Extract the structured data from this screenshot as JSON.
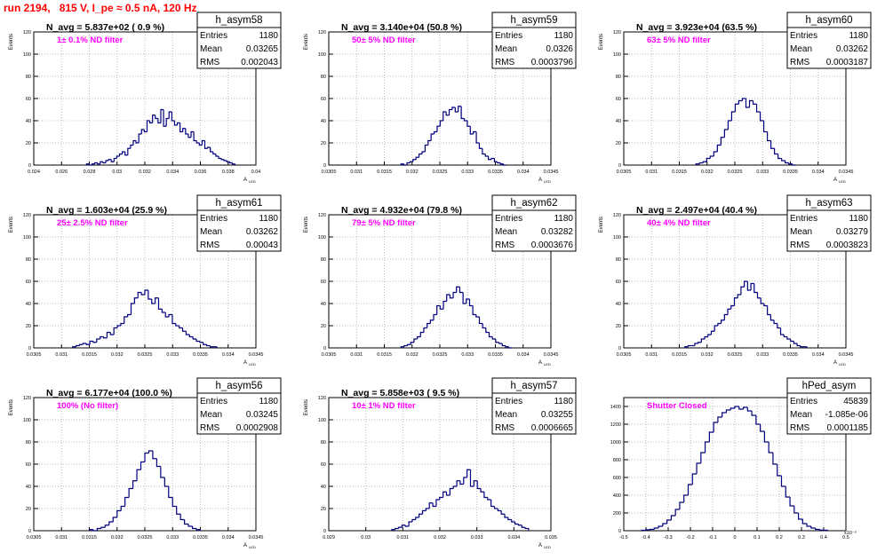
{
  "run_title": "run 2194,   815 V, I_pe ≈ 0.5 nA, 120 Hz",
  "colors": {
    "title": "#ff0000",
    "histogram": "#000080",
    "filter_text": "#ff00ff"
  },
  "chart_data": [
    {
      "type": "bar",
      "name": "h_asym58",
      "ylabel": "Events",
      "xlabel": "A_LED",
      "xlim": [
        0.024,
        0.04
      ],
      "ylim": [
        0,
        120
      ],
      "xticks": [
        "0.024",
        "0.026",
        "0.028",
        "0.03",
        "0.032",
        "0.034",
        "0.036",
        "0.038",
        "0.04"
      ],
      "yticks": [
        "0",
        "20",
        "40",
        "60",
        "80",
        "100",
        "120"
      ],
      "stats": {
        "entries_label": "Entries",
        "mean_label": "Mean",
        "rms_label": "RMS",
        "entries": "1180",
        "mean": "0.03265",
        "rms": "0.002043"
      },
      "n_avg": "N_avg = 5.837e+02 ( 0.9 %)",
      "filter": "1± 0.1% ND filter",
      "bins_x0": 0.0278,
      "bins_x1": 0.0385,
      "values": [
        1,
        0,
        1,
        2,
        1,
        3,
        2,
        4,
        5,
        3,
        6,
        8,
        10,
        12,
        9,
        15,
        18,
        22,
        20,
        28,
        32,
        30,
        40,
        38,
        45,
        42,
        38,
        50,
        35,
        42,
        48,
        40,
        36,
        38,
        30,
        33,
        28,
        25,
        30,
        22,
        20,
        18,
        22,
        15,
        16,
        12,
        10,
        8,
        6,
        5,
        4,
        3,
        2,
        1
      ]
    },
    {
      "type": "bar",
      "name": "h_asym59",
      "ylabel": "Events",
      "xlabel": "A_LED",
      "xlim": [
        0.0305,
        0.0345
      ],
      "ylim": [
        0,
        120
      ],
      "xticks": [
        "0.0305",
        "0.031",
        "0.0315",
        "0.032",
        "0.0325",
        "0.033",
        "0.0335",
        "0.034",
        "0.0345"
      ],
      "yticks": [
        "0",
        "20",
        "40",
        "60",
        "80",
        "100",
        "120"
      ],
      "stats": {
        "entries_label": "Entries",
        "mean_label": "Mean",
        "rms_label": "RMS",
        "entries": "1180",
        "mean": "0.0326",
        "rms": "0.0003796"
      },
      "n_avg": "N_avg = 3.140e+04 (50.8 %)",
      "filter": "50± 5% ND filter",
      "bins_x0": 0.0318,
      "bins_x1": 0.0337,
      "values": [
        1,
        0,
        2,
        3,
        5,
        7,
        10,
        12,
        18,
        22,
        28,
        30,
        35,
        40,
        48,
        45,
        50,
        52,
        48,
        53,
        42,
        40,
        35,
        28,
        30,
        20,
        15,
        10,
        8,
        5,
        6,
        3,
        2,
        1,
        0
      ]
    },
    {
      "type": "bar",
      "name": "h_asym60",
      "ylabel": "Events",
      "xlabel": "A_LED",
      "xlim": [
        0.0305,
        0.0345
      ],
      "ylim": [
        0,
        120
      ],
      "xticks": [
        "0.0305",
        "0.031",
        "0.0315",
        "0.032",
        "0.0325",
        "0.033",
        "0.0335",
        "0.034",
        "0.0345"
      ],
      "yticks": [
        "0",
        "20",
        "40",
        "60",
        "80",
        "100",
        "120"
      ],
      "stats": {
        "entries_label": "Entries",
        "mean_label": "Mean",
        "rms_label": "RMS",
        "entries": "1180",
        "mean": "0.03262",
        "rms": "0.0003187"
      },
      "n_avg": "N_avg = 3.923e+04 (63.5 %)",
      "filter": "63± 5% ND filter",
      "bins_x0": 0.0318,
      "bins_x1": 0.0336,
      "values": [
        1,
        2,
        3,
        6,
        8,
        12,
        18,
        25,
        32,
        40,
        48,
        55,
        58,
        60,
        52,
        58,
        55,
        48,
        40,
        30,
        22,
        15,
        10,
        6,
        4,
        2,
        1,
        0
      ]
    },
    {
      "type": "bar",
      "name": "h_asym61",
      "ylabel": "Events",
      "xlabel": "A_LED",
      "xlim": [
        0.0305,
        0.0345
      ],
      "ylim": [
        0,
        120
      ],
      "xticks": [
        "0.0305",
        "0.031",
        "0.0315",
        "0.032",
        "0.0325",
        "0.033",
        "0.0335",
        "0.034",
        "0.0345"
      ],
      "yticks": [
        "0",
        "20",
        "40",
        "60",
        "80",
        "100",
        "120"
      ],
      "stats": {
        "entries_label": "Entries",
        "mean_label": "Mean",
        "rms_label": "RMS",
        "entries": "1180",
        "mean": "0.03262",
        "rms": "0.00043"
      },
      "n_avg": "N_avg = 1.603e+04 (25.9 %)",
      "filter": "25± 2.5% ND filter",
      "bins_x0": 0.0312,
      "bins_x1": 0.0338,
      "values": [
        1,
        2,
        3,
        4,
        3,
        6,
        5,
        8,
        10,
        9,
        14,
        12,
        18,
        20,
        22,
        28,
        30,
        40,
        45,
        50,
        48,
        52,
        44,
        40,
        45,
        35,
        32,
        28,
        30,
        22,
        20,
        18,
        15,
        12,
        10,
        8,
        6,
        5,
        3,
        2,
        1,
        1
      ]
    },
    {
      "type": "bar",
      "name": "h_asym62",
      "ylabel": "Events",
      "xlabel": "A_LED",
      "xlim": [
        0.0305,
        0.0345
      ],
      "ylim": [
        0,
        120
      ],
      "xticks": [
        "0.0305",
        "0.031",
        "0.0315",
        "0.032",
        "0.0325",
        "0.033",
        "0.0335",
        "0.034",
        "0.0345"
      ],
      "yticks": [
        "0",
        "20",
        "40",
        "60",
        "80",
        "100",
        "120"
      ],
      "stats": {
        "entries_label": "Entries",
        "mean_label": "Mean",
        "rms_label": "RMS",
        "entries": "1180",
        "mean": "0.03282",
        "rms": "0.0003676"
      },
      "n_avg": "N_avg = 4.932e+04 (79.8 %)",
      "filter": "79± 5% ND filter",
      "bins_x0": 0.0318,
      "bins_x1": 0.0338,
      "values": [
        1,
        2,
        3,
        5,
        8,
        10,
        14,
        18,
        22,
        25,
        30,
        38,
        35,
        42,
        48,
        45,
        50,
        55,
        50,
        40,
        44,
        38,
        30,
        28,
        22,
        18,
        14,
        10,
        8,
        5,
        4,
        2,
        1,
        0
      ]
    },
    {
      "type": "bar",
      "name": "h_asym63",
      "ylabel": "Events",
      "xlabel": "A_LED",
      "xlim": [
        0.0305,
        0.0345
      ],
      "ylim": [
        0,
        120
      ],
      "xticks": [
        "0.0305",
        "0.031",
        "0.0315",
        "0.032",
        "0.0325",
        "0.033",
        "0.0335",
        "0.034",
        "0.0345"
      ],
      "yticks": [
        "0",
        "20",
        "40",
        "60",
        "80",
        "100",
        "120"
      ],
      "stats": {
        "entries_label": "Entries",
        "mean_label": "Mean",
        "rms_label": "RMS",
        "entries": "1180",
        "mean": "0.03279",
        "rms": "0.0003823"
      },
      "n_avg": "N_avg = 2.497e+04 (40.4 %)",
      "filter": "40± 4% ND filter",
      "bins_x0": 0.0316,
      "bins_x1": 0.0338,
      "values": [
        1,
        2,
        2,
        4,
        5,
        8,
        10,
        12,
        15,
        20,
        22,
        25,
        30,
        35,
        38,
        45,
        48,
        55,
        60,
        52,
        58,
        50,
        45,
        40,
        38,
        30,
        25,
        22,
        18,
        12,
        10,
        8,
        6,
        4,
        2,
        1,
        1
      ]
    },
    {
      "type": "bar",
      "name": "h_asym56",
      "ylabel": "Events",
      "xlabel": "A_LED",
      "xlim": [
        0.0305,
        0.0345
      ],
      "ylim": [
        0,
        120
      ],
      "xticks": [
        "0.0305",
        "0.031",
        "0.0315",
        "0.032",
        "0.0325",
        "0.033",
        "0.0335",
        "0.034",
        "0.0345"
      ],
      "yticks": [
        "0",
        "20",
        "40",
        "60",
        "80",
        "100",
        "120"
      ],
      "stats": {
        "entries_label": "Entries",
        "mean_label": "Mean",
        "rms_label": "RMS",
        "entries": "1180",
        "mean": "0.03245",
        "rms": "0.0002908"
      },
      "n_avg": "N_avg = 6.177e+04 (100.0 %)",
      "filter": "100% (No filter)",
      "bins_x0": 0.0315,
      "bins_x1": 0.0335,
      "values": [
        1,
        0,
        2,
        3,
        5,
        8,
        12,
        18,
        22,
        30,
        38,
        45,
        55,
        62,
        70,
        72,
        65,
        58,
        48,
        40,
        30,
        22,
        15,
        10,
        6,
        4,
        2,
        1
      ]
    },
    {
      "type": "bar",
      "name": "h_asym57",
      "ylabel": "Events",
      "xlabel": "A_LED",
      "xlim": [
        0.029,
        0.035
      ],
      "ylim": [
        0,
        120
      ],
      "xticks": [
        "0.029",
        "0.03",
        "0.031",
        "0.032",
        "0.033",
        "0.034",
        "0.035"
      ],
      "yticks": [
        "0",
        "20",
        "40",
        "60",
        "80",
        "100",
        "120"
      ],
      "stats": {
        "entries_label": "Entries",
        "mean_label": "Mean",
        "rms_label": "RMS",
        "entries": "1180",
        "mean": "0.03255",
        "rms": "0.0006665"
      },
      "n_avg": "N_avg = 5.858e+03 ( 9.5 %)",
      "filter": "10± 1% ND filter",
      "bins_x0": 0.0307,
      "bins_x1": 0.0344,
      "values": [
        1,
        2,
        3,
        5,
        4,
        8,
        10,
        12,
        15,
        18,
        20,
        25,
        22,
        28,
        30,
        35,
        32,
        38,
        40,
        45,
        42,
        48,
        55,
        40,
        45,
        38,
        35,
        30,
        28,
        22,
        20,
        18,
        15,
        12,
        10,
        8,
        6,
        5,
        3,
        2
      ]
    },
    {
      "type": "bar",
      "name": "hPed_asym",
      "ylabel": "",
      "xlabel": "",
      "xlim": [
        -0.5,
        0.5
      ],
      "ylim": [
        0,
        1500
      ],
      "xticks": [
        "-0.5",
        "-0.4",
        "-0.3",
        "-0.2",
        "-0.1",
        "0",
        "0.1",
        "0.2",
        "0.3",
        "0.4",
        "0.5"
      ],
      "yticks": [
        "0",
        "200",
        "400",
        "600",
        "800",
        "1000",
        "1200",
        "1400"
      ],
      "exponent": "x10⁻³",
      "stats": {
        "entries_label": "Entries",
        "mean_label": "Mean",
        "rms_label": "RMS",
        "entries": "45839",
        "mean": "-1.085e-06",
        "rms": "0.0001185"
      },
      "n_avg": "",
      "filter": "Shutter Closed",
      "bins_x0": -0.42,
      "bins_x1": 0.42,
      "values": [
        5,
        10,
        15,
        30,
        50,
        80,
        120,
        170,
        240,
        320,
        400,
        520,
        640,
        760,
        880,
        1000,
        1110,
        1220,
        1280,
        1330,
        1360,
        1380,
        1400,
        1370,
        1390,
        1350,
        1300,
        1200,
        1120,
        1000,
        880,
        750,
        620,
        500,
        380,
        280,
        200,
        130,
        80,
        50,
        30,
        15,
        8,
        5
      ]
    }
  ]
}
